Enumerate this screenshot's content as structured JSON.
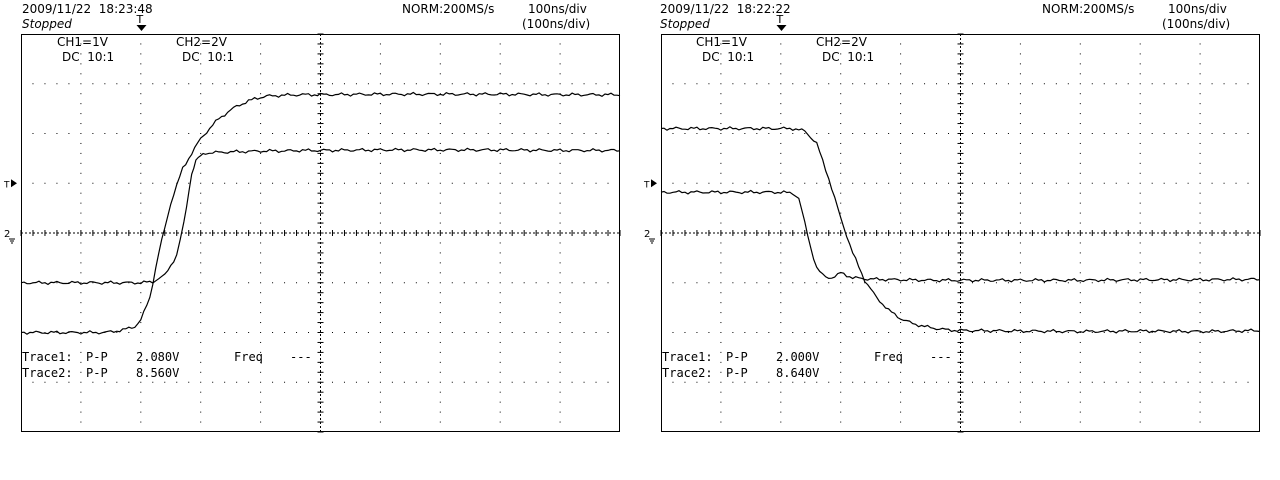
{
  "chart_data": [
    {
      "type": "line",
      "header": {
        "datetime": "2009/11/22  18:23:48",
        "status": "Stopped",
        "acq": "NORM:200MS/s",
        "timebase": "100ns/div",
        "timebase_sub": "(100ns/div)"
      },
      "channels": {
        "ch1_scale": "CH1=1V",
        "ch1_coupling": "DC  10:1",
        "ch2_scale": "CH2=2V",
        "ch2_coupling": "DC  10:1"
      },
      "trigger_marker": "T",
      "trigger_level_marker": "T",
      "ground_marker": "2",
      "measurements": [
        {
          "label": "Trace1:",
          "type": "P-P",
          "value": "2.080V",
          "extra_label": "Freq",
          "extra_value": "---"
        },
        {
          "label": "Trace2:",
          "type": "P-P",
          "value": "8.560V"
        }
      ],
      "axes": {
        "x_unit": "ns",
        "xlim": [
          -500,
          500
        ],
        "y_unit": "div",
        "ylim": [
          -4,
          4
        ],
        "grid": true
      },
      "series": [
        {
          "x": [
            -500,
            -300,
            -280,
            -260,
            -240,
            -228,
            -215,
            -208,
            -200,
            -192,
            -180,
            -170,
            -150,
            -120,
            -90,
            -60,
            -30,
            0,
            100,
            200,
            300,
            400,
            500
          ],
          "y": [
            -1.0,
            -1.0,
            -0.98,
            -0.85,
            -0.45,
            0.2,
            1.2,
            1.45,
            1.55,
            1.6,
            1.62,
            1.62,
            1.63,
            1.64,
            1.65,
            1.65,
            1.66,
            1.66,
            1.67,
            1.67,
            1.67,
            1.66,
            1.66
          ]
        },
        {
          "x": [
            -500,
            -360,
            -330,
            -310,
            -300,
            -285,
            -270,
            -250,
            -230,
            -200,
            -170,
            -140,
            -110,
            -90,
            -60,
            -30,
            0,
            100,
            200,
            300,
            400,
            500
          ],
          "y": [
            -2.0,
            -2.0,
            -1.95,
            -1.88,
            -1.75,
            -1.3,
            -0.4,
            0.6,
            1.3,
            1.9,
            2.3,
            2.55,
            2.7,
            2.75,
            2.77,
            2.78,
            2.78,
            2.79,
            2.79,
            2.79,
            2.78,
            2.78
          ]
        }
      ]
    },
    {
      "type": "line",
      "header": {
        "datetime": "2009/11/22  18:22:22",
        "status": "Stopped",
        "acq": "NORM:200MS/s",
        "timebase": "100ns/div",
        "timebase_sub": "(100ns/div)"
      },
      "channels": {
        "ch1_scale": "CH1=1V",
        "ch1_coupling": "DC  10:1",
        "ch2_scale": "CH2=2V",
        "ch2_coupling": "DC  10:1"
      },
      "trigger_marker": "T",
      "trigger_level_marker": "T",
      "ground_marker": "2",
      "measurements": [
        {
          "label": "Trace1:",
          "type": "P-P",
          "value": "2.000V",
          "extra_label": "Freq",
          "extra_value": "---"
        },
        {
          "label": "Trace2:",
          "type": "P-P",
          "value": "8.640V"
        }
      ],
      "axes": {
        "x_unit": "ns",
        "xlim": [
          -500,
          500
        ],
        "y_unit": "div",
        "ylim": [
          -4,
          4
        ],
        "grid": true
      },
      "series": [
        {
          "x": [
            -500,
            -300,
            -280,
            -270,
            -260,
            -250,
            -240,
            -230,
            -220,
            -210,
            -200,
            -180,
            -160,
            -140,
            -100,
            -50,
            0,
            100,
            200,
            300,
            400,
            500
          ],
          "y": [
            0.82,
            0.82,
            0.8,
            0.7,
            0.2,
            -0.3,
            -0.7,
            -0.85,
            -0.9,
            -0.88,
            -0.8,
            -0.9,
            -0.92,
            -0.93,
            -0.94,
            -0.95,
            -0.95,
            -0.95,
            -0.95,
            -0.94,
            -0.94,
            -0.93
          ]
        },
        {
          "x": [
            -500,
            -280,
            -260,
            -240,
            -220,
            -200,
            -180,
            -160,
            -140,
            -120,
            -100,
            -80,
            -60,
            -40,
            -20,
            0,
            100,
            200,
            300,
            400,
            500
          ],
          "y": [
            2.1,
            2.1,
            2.05,
            1.8,
            1.1,
            0.3,
            -0.4,
            -0.95,
            -1.3,
            -1.55,
            -1.72,
            -1.82,
            -1.88,
            -1.92,
            -1.95,
            -1.96,
            -1.97,
            -1.98,
            -1.97,
            -1.98,
            -1.96
          ]
        }
      ]
    }
  ]
}
